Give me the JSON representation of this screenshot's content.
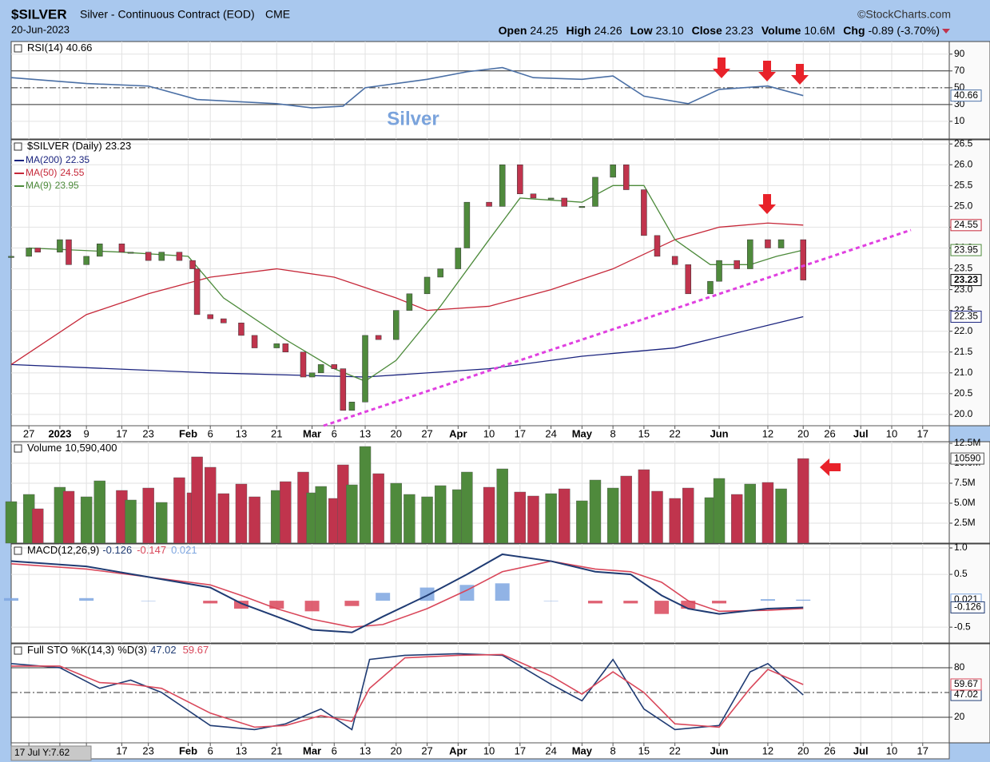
{
  "header": {
    "symbol": "$SILVER",
    "name": "Silver - Continuous Contract (EOD)",
    "exchange": "CME",
    "brand": "©StockCharts.com",
    "date": "20-Jun-2023",
    "quote": [
      {
        "label": "Open",
        "value": "24.25"
      },
      {
        "label": "High",
        "value": "24.26"
      },
      {
        "label": "Low",
        "value": "23.10"
      },
      {
        "label": "Close",
        "value": "23.23"
      },
      {
        "label": "Volume",
        "value": "10.6M"
      },
      {
        "label": "Chg",
        "value": "-0.89 (-3.70%)"
      }
    ]
  },
  "cursor_readout": "17 Jul Y:7.62",
  "chart_data": [
    {
      "type": "line",
      "title": "RSI(14)",
      "watermark": "Silver",
      "xlim": [
        "2022-12-23",
        "2023-07-23"
      ],
      "x": [
        "2022-12-23",
        "2023-01-09",
        "2023-01-23",
        "2023-02-03",
        "2023-02-21",
        "2023-03-01",
        "2023-03-08",
        "2023-03-13",
        "2023-03-27",
        "2023-04-05",
        "2023-04-13",
        "2023-04-20",
        "2023-05-01",
        "2023-05-08",
        "2023-05-15",
        "2023-05-25",
        "2023-06-01",
        "2023-06-12",
        "2023-06-20"
      ],
      "series": [
        {
          "color": "#4a6fa5",
          "values": [
            62,
            55,
            52,
            36,
            31,
            26,
            28,
            50,
            60,
            69,
            74,
            62,
            60,
            64,
            40,
            31,
            48,
            52,
            40.66
          ]
        }
      ],
      "ylim": [
        -11,
        105
      ],
      "yticks": [
        10,
        30,
        50,
        70,
        90
      ],
      "hlines": [
        70,
        50,
        30
      ]
    },
    {
      "type": "candlestick",
      "title": "$SILVER (Daily)",
      "xlim": [
        "2022-12-23",
        "2023-07-23"
      ],
      "x": [
        "2022-12-23",
        "2022-12-27",
        "2022-12-29",
        "2023-01-03",
        "2023-01-05",
        "2023-01-09",
        "2023-01-12",
        "2023-01-17",
        "2023-01-19",
        "2023-01-23",
        "2023-01-26",
        "2023-01-30",
        "2023-02-02",
        "2023-02-03",
        "2023-02-06",
        "2023-02-09",
        "2023-02-13",
        "2023-02-16",
        "2023-02-21",
        "2023-02-23",
        "2023-02-27",
        "2023-03-01",
        "2023-03-03",
        "2023-03-06",
        "2023-03-08",
        "2023-03-10",
        "2023-03-13",
        "2023-03-16",
        "2023-03-20",
        "2023-03-23",
        "2023-03-27",
        "2023-03-30",
        "2023-04-03",
        "2023-04-05",
        "2023-04-10",
        "2023-04-13",
        "2023-04-17",
        "2023-04-20",
        "2023-04-24",
        "2023-04-27",
        "2023-05-01",
        "2023-05-04",
        "2023-05-08",
        "2023-05-11",
        "2023-05-15",
        "2023-05-18",
        "2023-05-22",
        "2023-05-25",
        "2023-05-30",
        "2023-06-01",
        "2023-06-05",
        "2023-06-08",
        "2023-06-12",
        "2023-06-15",
        "2023-06-20"
      ],
      "values": [
        23.8,
        24.0,
        23.9,
        24.2,
        23.6,
        23.8,
        24.1,
        23.9,
        23.9,
        23.7,
        23.9,
        23.7,
        23.5,
        22.4,
        22.3,
        22.2,
        21.9,
        21.6,
        21.7,
        21.5,
        20.9,
        21.0,
        21.2,
        21.1,
        20.1,
        20.3,
        21.9,
        21.8,
        22.5,
        22.9,
        23.3,
        23.5,
        24.0,
        25.1,
        25.0,
        26.0,
        25.3,
        25.2,
        25.2,
        25.0,
        25.0,
        25.7,
        26.0,
        25.4,
        24.3,
        23.8,
        23.6,
        22.9,
        23.2,
        23.7,
        23.5,
        24.2,
        24.0,
        24.2,
        23.23
      ],
      "up_color": "#4f8a3c",
      "down_color": "#c0344d",
      "series": [
        {
          "name": "MA(200)",
          "color": "#1a237e",
          "x": [
            "2022-12-23",
            "2023-02-06",
            "2023-03-13",
            "2023-04-10",
            "2023-05-01",
            "2023-05-22",
            "2023-06-20"
          ],
          "values": [
            21.2,
            21.0,
            20.9,
            21.1,
            21.4,
            21.6,
            22.35
          ]
        },
        {
          "name": "MA(50)",
          "color": "#c62839",
          "x": [
            "2022-12-23",
            "2023-01-09",
            "2023-01-23",
            "2023-02-06",
            "2023-02-21",
            "2023-03-06",
            "2023-03-20",
            "2023-03-27",
            "2023-04-10",
            "2023-04-24",
            "2023-05-08",
            "2023-05-22",
            "2023-06-01",
            "2023-06-12",
            "2023-06-20"
          ],
          "values": [
            21.2,
            22.4,
            22.9,
            23.3,
            23.5,
            23.3,
            22.8,
            22.5,
            22.6,
            23.0,
            23.5,
            24.2,
            24.5,
            24.6,
            24.55
          ]
        },
        {
          "name": "MA(9)",
          "color": "#4c8a3a",
          "x": [
            "2022-12-27",
            "2023-01-17",
            "2023-02-01",
            "2023-02-09",
            "2023-02-23",
            "2023-03-06",
            "2023-03-13",
            "2023-03-20",
            "2023-03-30",
            "2023-04-10",
            "2023-04-17",
            "2023-05-01",
            "2023-05-08",
            "2023-05-15",
            "2023-05-22",
            "2023-05-30",
            "2023-06-08",
            "2023-06-14",
            "2023-06-20"
          ],
          "values": [
            24.0,
            23.9,
            23.8,
            22.8,
            21.8,
            21.1,
            20.8,
            21.3,
            22.6,
            24.2,
            25.2,
            25.1,
            25.5,
            25.5,
            24.2,
            23.6,
            23.6,
            23.8,
            23.95
          ]
        }
      ],
      "ylim": [
        19.73,
        26.6
      ],
      "yticks": [
        {
          "value": 20,
          "label": "20.0"
        },
        20.5,
        {
          "value": 21,
          "label": "21.0"
        },
        21.5,
        {
          "value": 22,
          "label": "22.0"
        },
        22.5,
        {
          "value": 23,
          "label": "23.0"
        },
        23.5,
        {
          "value": 24,
          "label": "24.0"
        },
        24.5,
        {
          "value": 25,
          "label": "25.0"
        },
        25.5,
        {
          "value": 26,
          "label": "26.0"
        },
        26.5
      ],
      "xticks": [
        {
          "value": "2022-12-27",
          "label": "27"
        },
        {
          "value": "2023-01-03",
          "label": "2023"
        },
        {
          "value": "2023-01-09",
          "label": "9"
        },
        {
          "value": "2023-01-17",
          "label": "17"
        },
        {
          "value": "2023-01-23",
          "label": "23"
        },
        {
          "value": "2023-02-01",
          "label": "Feb"
        },
        {
          "value": "2023-02-06",
          "label": "6"
        },
        {
          "value": "2023-02-13",
          "label": "13"
        },
        {
          "value": "2023-02-21",
          "label": "21"
        },
        {
          "value": "2023-03-01",
          "label": "Mar"
        },
        {
          "value": "2023-03-06",
          "label": "6"
        },
        {
          "value": "2023-03-13",
          "label": "13"
        },
        {
          "value": "2023-03-20",
          "label": "20"
        },
        {
          "value": "2023-03-27",
          "label": "27"
        },
        {
          "value": "2023-04-03",
          "label": "Apr"
        },
        {
          "value": "2023-04-10",
          "label": "10"
        },
        {
          "value": "2023-04-17",
          "label": "17"
        },
        {
          "value": "2023-04-24",
          "label": "24"
        },
        {
          "value": "2023-05-01",
          "label": "May"
        },
        {
          "value": "2023-05-08",
          "label": "8"
        },
        {
          "value": "2023-05-15",
          "label": "15"
        },
        {
          "value": "2023-05-22",
          "label": "22"
        },
        {
          "value": "2023-06-01",
          "label": "Jun"
        },
        {
          "value": "2023-06-12",
          "label": "12"
        },
        {
          "value": "2023-06-20",
          "label": "20"
        },
        {
          "value": "2023-06-26",
          "label": "26"
        },
        {
          "value": "2023-07-03",
          "label": "Jul"
        },
        {
          "value": "2023-07-10",
          "label": "10"
        },
        {
          "value": "2023-07-17",
          "label": "17"
        }
      ]
    },
    {
      "type": "bar",
      "title": "Volume",
      "title_value": "10,590,400",
      "tag": "10590",
      "xlim": [
        "2022-12-23",
        "2023-07-23"
      ],
      "values": [
        5200000,
        6100000,
        4300000,
        7000000,
        6500000,
        5800000,
        7800000,
        6600000,
        5400000,
        6900000,
        5100000,
        8200000,
        6300000,
        10800000,
        9500000,
        6200000,
        7400000,
        5800000,
        6600000,
        7700000,
        8900000,
        6300000,
        7100000,
        5600000,
        9800000,
        7300000,
        12100000,
        8700000,
        7500000,
        6100000,
        5800000,
        7200000,
        6700000,
        8900000,
        7000000,
        9300000,
        6400000,
        5900000,
        6200000,
        6800000,
        5300000,
        7900000,
        6900000,
        8400000,
        9200000,
        6500000,
        5600000,
        6900000,
        5700000,
        8100000,
        6100000,
        7400000,
        7600000,
        6800000,
        10590400
      ],
      "up_color": "#4f8a3c",
      "down_color": "#c0344d",
      "ylim": [
        0,
        12700000
      ],
      "yticks": [
        {
          "value": 2500000,
          "label": "2.5M"
        },
        {
          "value": 5000000,
          "label": "5.0M"
        },
        {
          "value": 7500000,
          "label": "7.5M"
        },
        {
          "value": 10000000,
          "label": "10.0M"
        },
        {
          "value": 12500000,
          "label": "12.5M"
        }
      ]
    },
    {
      "type": "macd",
      "title": "MACD(12,26,9)",
      "xlim": [
        "2022-12-23",
        "2023-07-23"
      ],
      "x": [
        "2022-12-23",
        "2023-01-09",
        "2023-01-23",
        "2023-02-06",
        "2023-02-13",
        "2023-02-21",
        "2023-03-01",
        "2023-03-10",
        "2023-03-17",
        "2023-03-27",
        "2023-04-05",
        "2023-04-13",
        "2023-04-24",
        "2023-05-04",
        "2023-05-12",
        "2023-05-19",
        "2023-05-25",
        "2023-06-01",
        "2023-06-12",
        "2023-06-20"
      ],
      "series": [
        {
          "color": "#1f3b73",
          "values": [
            0.75,
            0.65,
            0.45,
            0.25,
            -0.05,
            -0.3,
            -0.55,
            -0.6,
            -0.3,
            0.1,
            0.5,
            0.88,
            0.75,
            0.55,
            0.5,
            0.1,
            -0.15,
            -0.25,
            -0.15,
            -0.126
          ]
        },
        {
          "color": "#d9475a",
          "values": [
            0.7,
            0.6,
            0.45,
            0.3,
            0.1,
            -0.15,
            -0.35,
            -0.5,
            -0.45,
            -0.15,
            0.2,
            0.55,
            0.75,
            0.6,
            0.55,
            0.35,
            0.0,
            -0.2,
            -0.18,
            -0.147
          ]
        },
        {
          "color": "#7ea6e0",
          "negative_color": "#d9475a",
          "values": [
            0.05,
            0.05,
            0,
            -0.05,
            -0.15,
            -0.15,
            -0.2,
            -0.1,
            0.15,
            0.25,
            0.3,
            0.33,
            0,
            -0.05,
            -0.05,
            -0.25,
            -0.15,
            -0.05,
            0.03,
            0.021
          ]
        }
      ],
      "ylim": [
        -0.8,
        1.076
      ],
      "yticks": [
        -0.5,
        0.5,
        {
          "value": 1,
          "label": "1.0"
        }
      ]
    },
    {
      "type": "line",
      "title": "Full STO",
      "xlim": [
        "2022-12-23",
        "2023-07-23"
      ],
      "x": [
        "2022-12-23",
        "2023-01-03",
        "2023-01-12",
        "2023-01-19",
        "2023-01-26",
        "2023-02-06",
        "2023-02-16",
        "2023-02-23",
        "2023-03-03",
        "2023-03-10",
        "2023-03-14",
        "2023-03-22",
        "2023-04-03",
        "2023-04-13",
        "2023-04-24",
        "2023-05-01",
        "2023-05-08",
        "2023-05-15",
        "2023-05-22",
        "2023-06-01",
        "2023-06-08",
        "2023-06-12",
        "2023-06-20"
      ],
      "series": [
        {
          "name": "%K(14,3)",
          "color": "#1f3b73",
          "values": [
            85,
            80,
            55,
            65,
            50,
            10,
            5,
            12,
            30,
            5,
            90,
            95,
            97,
            95,
            60,
            40,
            90,
            30,
            5,
            10,
            75,
            85,
            47.02
          ]
        },
        {
          "name": "%D(3)",
          "color": "#d9475a",
          "values": [
            82,
            82,
            62,
            60,
            55,
            25,
            8,
            10,
            22,
            15,
            55,
            92,
            95,
            96,
            70,
            48,
            75,
            50,
            12,
            8,
            55,
            78,
            59.67
          ]
        }
      ],
      "ylim": [
        -11,
        109
      ],
      "yticks": [
        20,
        80
      ],
      "hlines": [
        80,
        50,
        20
      ]
    }
  ]
}
